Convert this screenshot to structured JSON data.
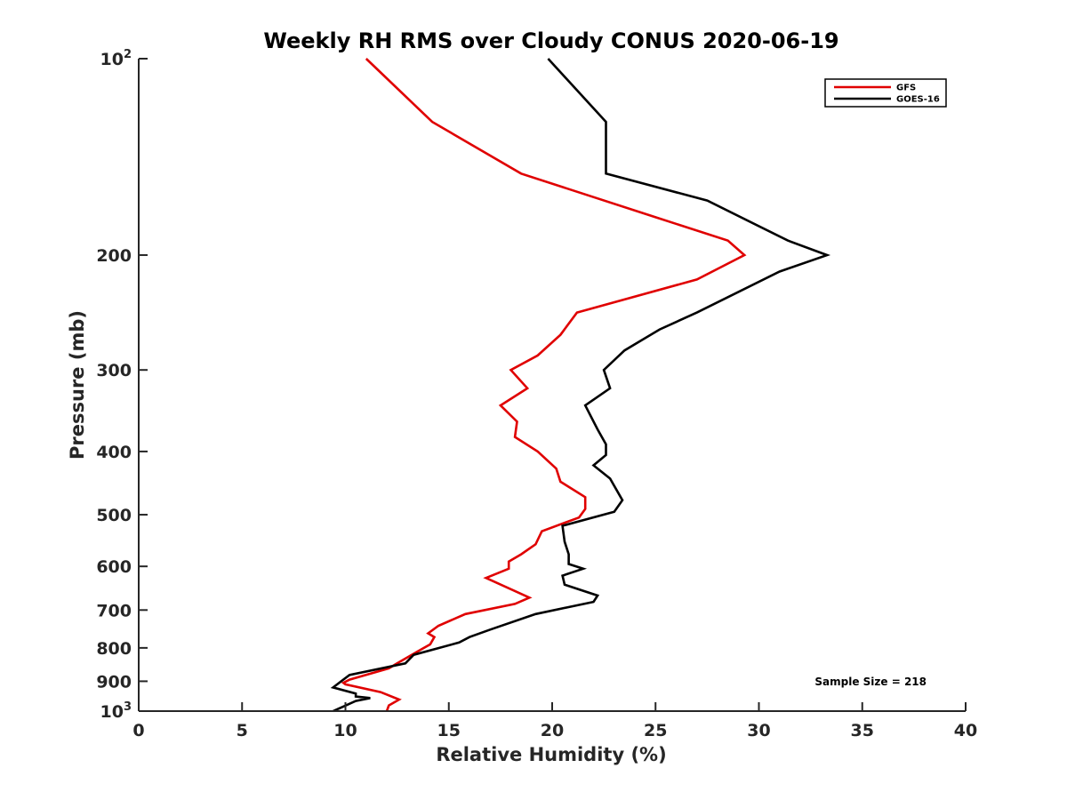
{
  "chart_data": {
    "type": "line",
    "title": "Weekly RH RMS over Cloudy CONUS 2020-06-19",
    "xlabel": "Relative Humidity (%)",
    "ylabel": "Pressure (mb)",
    "xlim": [
      0,
      40
    ],
    "ylim": [
      100,
      1000
    ],
    "y_scale": "log",
    "y_reversed": true,
    "x_ticks": [
      "0",
      "5",
      "10",
      "15",
      "20",
      "25",
      "30",
      "35",
      "40"
    ],
    "y_ticks": [
      {
        "value": 100,
        "base": "10",
        "exp": "2"
      },
      {
        "value": 200,
        "label": "200"
      },
      {
        "value": 300,
        "label": "300"
      },
      {
        "value": 400,
        "label": "400"
      },
      {
        "value": 500,
        "label": "500"
      },
      {
        "value": 600,
        "label": "600"
      },
      {
        "value": 700,
        "label": "700"
      },
      {
        "value": 800,
        "label": "800"
      },
      {
        "value": 900,
        "label": "900"
      },
      {
        "value": 1000,
        "base": "10",
        "exp": "3"
      }
    ],
    "legend_position": "top-right",
    "annotation": "Sample Size = 218",
    "series": [
      {
        "name": "GFS",
        "color": "#e00000",
        "points": [
          [
            11.0,
            100
          ],
          [
            14.2,
            125
          ],
          [
            18.5,
            150
          ],
          [
            25.0,
            175
          ],
          [
            28.5,
            190
          ],
          [
            29.3,
            200
          ],
          [
            27.0,
            218
          ],
          [
            21.2,
            245
          ],
          [
            20.4,
            265
          ],
          [
            19.3,
            285
          ],
          [
            18.0,
            300
          ],
          [
            18.8,
            320
          ],
          [
            17.5,
            340
          ],
          [
            18.3,
            360
          ],
          [
            18.2,
            380
          ],
          [
            19.3,
            400
          ],
          [
            20.2,
            425
          ],
          [
            20.4,
            445
          ],
          [
            21.6,
            470
          ],
          [
            21.6,
            490
          ],
          [
            21.3,
            505
          ],
          [
            19.5,
            530
          ],
          [
            19.2,
            555
          ],
          [
            18.5,
            575
          ],
          [
            17.9,
            590
          ],
          [
            17.9,
            605
          ],
          [
            16.8,
            625
          ],
          [
            18.9,
            670
          ],
          [
            18.2,
            685
          ],
          [
            15.8,
            710
          ],
          [
            14.5,
            740
          ],
          [
            14.0,
            760
          ],
          [
            14.3,
            770
          ],
          [
            14.1,
            790
          ],
          [
            13.5,
            810
          ],
          [
            12.5,
            845
          ],
          [
            12.1,
            860
          ],
          [
            10.2,
            895
          ],
          [
            9.9,
            905
          ],
          [
            10.0,
            910
          ],
          [
            11.7,
            935
          ],
          [
            12.6,
            960
          ],
          [
            12.1,
            980
          ],
          [
            12.0,
            1000
          ]
        ]
      },
      {
        "name": "GOES-16",
        "color": "#000000",
        "points": [
          [
            19.8,
            100
          ],
          [
            22.6,
            125
          ],
          [
            22.6,
            150
          ],
          [
            27.5,
            165
          ],
          [
            31.4,
            190
          ],
          [
            33.3,
            200
          ],
          [
            31.0,
            212
          ],
          [
            27.0,
            245
          ],
          [
            25.2,
            260
          ],
          [
            23.5,
            280
          ],
          [
            22.5,
            300
          ],
          [
            22.8,
            320
          ],
          [
            21.6,
            340
          ],
          [
            22.2,
            370
          ],
          [
            22.6,
            390
          ],
          [
            22.6,
            405
          ],
          [
            22.0,
            420
          ],
          [
            22.8,
            440
          ],
          [
            23.4,
            475
          ],
          [
            23.0,
            495
          ],
          [
            20.5,
            520
          ],
          [
            20.6,
            550
          ],
          [
            20.8,
            575
          ],
          [
            20.8,
            595
          ],
          [
            21.5,
            605
          ],
          [
            20.5,
            620
          ],
          [
            20.6,
            640
          ],
          [
            22.2,
            665
          ],
          [
            22.0,
            680
          ],
          [
            19.2,
            710
          ],
          [
            17.0,
            750
          ],
          [
            16.0,
            770
          ],
          [
            15.5,
            785
          ],
          [
            13.3,
            820
          ],
          [
            12.9,
            845
          ],
          [
            10.2,
            880
          ],
          [
            9.4,
            920
          ],
          [
            10.5,
            940
          ],
          [
            10.5,
            950
          ],
          [
            11.2,
            955
          ],
          [
            10.5,
            965
          ],
          [
            9.4,
            1000
          ]
        ]
      }
    ]
  }
}
